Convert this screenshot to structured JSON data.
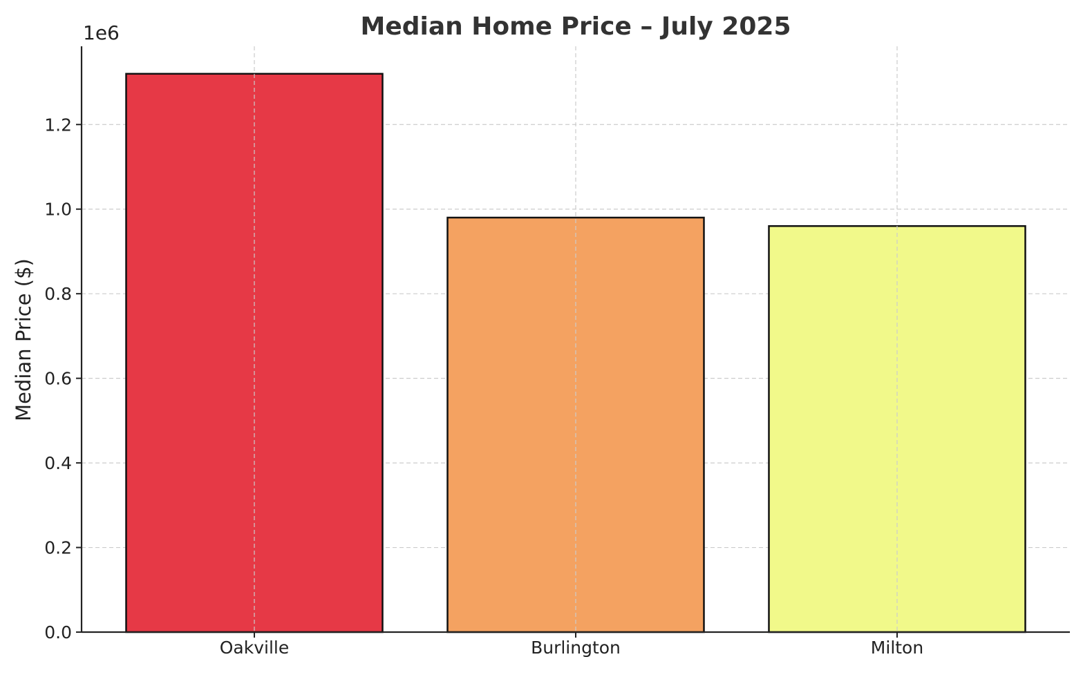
{
  "chart_data": {
    "type": "bar",
    "title": "Median Home Price – July 2025",
    "xlabel": "",
    "ylabel": "Median Price ($)",
    "offset_text": "1e6",
    "categories": [
      "Oakville",
      "Burlington",
      "Milton"
    ],
    "values": [
      1320000,
      980000,
      960000
    ],
    "colors": [
      "#e63946",
      "#f4a261",
      "#f1f98a"
    ],
    "ylim": [
      0,
      1385000
    ],
    "yticks": [
      0,
      200000,
      400000,
      600000,
      800000,
      1000000,
      1200000
    ],
    "ytick_labels": [
      "0.0",
      "0.2",
      "0.4",
      "0.6",
      "0.8",
      "1.0",
      "1.2"
    ],
    "grid": true,
    "grid_style": "dashed"
  }
}
